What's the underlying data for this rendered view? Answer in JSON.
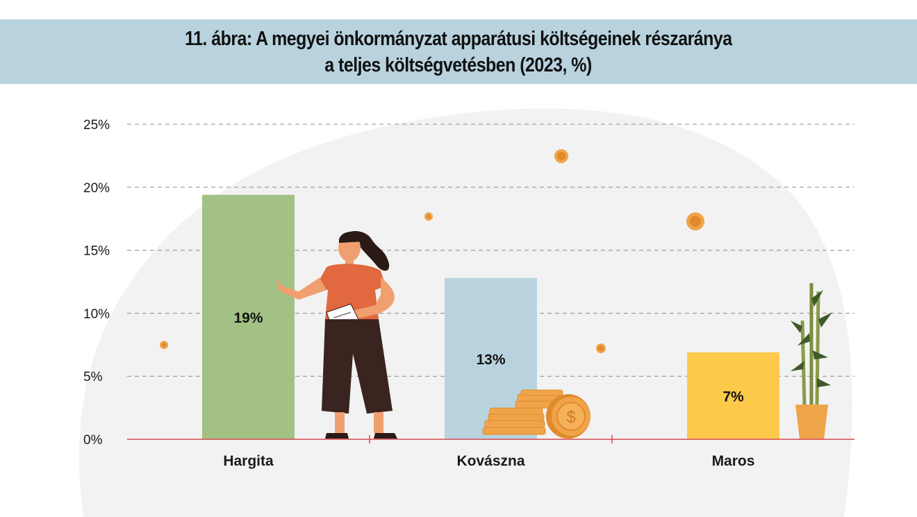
{
  "header": {
    "title_line1": "11. ábra: A megyei önkormányzat apparátusi költségeinek részaránya",
    "title_line2": "a teljes költségvetésben (2023, %)"
  },
  "colors": {
    "band": "#b9d3de",
    "background_blob": "#f2f2f2",
    "axis": "#d6474f",
    "grid": "#8c8c8c",
    "coin": "#f0a44a"
  },
  "chart_data": {
    "type": "bar",
    "categories": [
      "Hargita",
      "Kovászna",
      "Maros"
    ],
    "values": [
      19.4,
      12.8,
      6.9
    ],
    "data_labels": [
      "19%",
      "13%",
      "7%"
    ],
    "bar_colors": [
      "#a3c184",
      "#b9d3de",
      "#fcc94a"
    ],
    "ylim": [
      0,
      25
    ],
    "yticks": [
      0,
      5,
      10,
      15,
      20,
      25
    ],
    "ytick_labels": [
      "0%",
      "5%",
      "10%",
      "15%",
      "20%",
      "25%"
    ],
    "grid": true,
    "xlabel": "",
    "ylabel": ""
  }
}
